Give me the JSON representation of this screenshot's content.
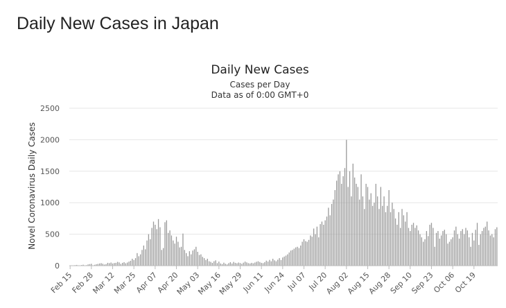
{
  "page": {
    "heading": "Daily New Cases in Japan"
  },
  "chart_data": {
    "type": "bar",
    "title": "Daily New Cases",
    "subtitle_lines": [
      "Cases per Day",
      "Data as of 0:00 GMT+0"
    ],
    "xlabel": "",
    "ylabel": "Novel Coronavirus Daily Cases",
    "ylim": [
      0,
      2500
    ],
    "yticks": [
      0,
      500,
      1000,
      1500,
      2000,
      2500
    ],
    "grid": true,
    "legend": "none",
    "bar_color": "#999999",
    "start_date": "Feb 15",
    "xtick_labels": [
      "Feb 15",
      "Feb 28",
      "Mar 12",
      "Mar 25",
      "Apr 07",
      "Apr 20",
      "May 03",
      "May 16",
      "May 29",
      "Jun 11",
      "Jun 24",
      "Jul 07",
      "Jul 20",
      "Aug 02",
      "Aug 15",
      "Aug 28",
      "Sep 10",
      "Sep 23",
      "Oct 06",
      "Oct 19"
    ],
    "series": [
      {
        "values": [
          2,
          5,
          3,
          8,
          12,
          6,
          4,
          10,
          15,
          3,
          8,
          20,
          25,
          30,
          6,
          14,
          22,
          28,
          35,
          40,
          30,
          18,
          25,
          45,
          40,
          50,
          35,
          42,
          45,
          60,
          52,
          28,
          45,
          55,
          38,
          50,
          65,
          78,
          110,
          90,
          120,
          200,
          150,
          180,
          250,
          320,
          260,
          400,
          500,
          420,
          600,
          700,
          650,
          580,
          740,
          610,
          250,
          280,
          690,
          720,
          520,
          560,
          480,
          400,
          350,
          460,
          380,
          290,
          300,
          510,
          250,
          200,
          150,
          230,
          180,
          240,
          260,
          300,
          220,
          170,
          180,
          140,
          120,
          90,
          110,
          70,
          60,
          45,
          70,
          85,
          40,
          65,
          35,
          25,
          48,
          30,
          20,
          40,
          55,
          35,
          60,
          45,
          38,
          50,
          42,
          30,
          48,
          65,
          52,
          40,
          35,
          45,
          38,
          50,
          62,
          70,
          58,
          45,
          40,
          55,
          80,
          65,
          92,
          70,
          110,
          85,
          70,
          95,
          120,
          90,
          130,
          145,
          160,
          180,
          210,
          240,
          250,
          270,
          290,
          300,
          280,
          320,
          380,
          420,
          390,
          380,
          410,
          480,
          460,
          590,
          500,
          620,
          450,
          660,
          700,
          650,
          720,
          780,
          920,
          800,
          980,
          1050,
          1200,
          1350,
          1450,
          1500,
          1300,
          1420,
          1550,
          1998,
          1250,
          1500,
          1100,
          1620,
          1400,
          1300,
          1250,
          1050,
          1450,
          1100,
          900,
          1300,
          1250,
          1050,
          1150,
          950,
          1000,
          1300,
          1100,
          900,
          1250,
          950,
          1100,
          850,
          950,
          1200,
          850,
          1000,
          900,
          750,
          650,
          850,
          600,
          900,
          800,
          700,
          850,
          600,
          550,
          650,
          680,
          600,
          640,
          560,
          500,
          450,
          380,
          420,
          550,
          470,
          650,
          680,
          600,
          300,
          520,
          550,
          430,
          480,
          550,
          570,
          500,
          350,
          380,
          420,
          450,
          560,
          620,
          500,
          430,
          550,
          580,
          500,
          600,
          560,
          450,
          300,
          520,
          400,
          570,
          680,
          330,
          500,
          550,
          600,
          620,
          700,
          560,
          480,
          500,
          450,
          580,
          610
        ]
      }
    ]
  }
}
